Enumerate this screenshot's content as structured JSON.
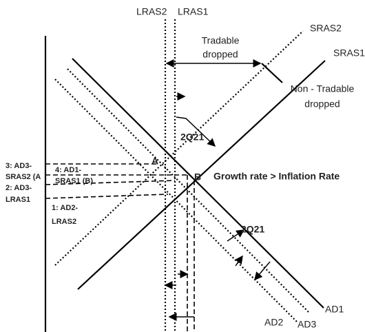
{
  "labels": {
    "lras2": "LRAS2",
    "lras1": "LRAS1",
    "sras2": "SRAS2",
    "sras1": "SRAS1",
    "tradable": [
      "Tradable",
      "dropped"
    ],
    "nontradable": [
      "Non - Tradable",
      "dropped"
    ],
    "q_top": "2Q21",
    "q_bottom": "2Q21",
    "a": "A",
    "b": "B",
    "growth": "Growth rate > Inflation Rate",
    "p3": [
      "3: AD3-",
      "SRAS2 (A"
    ],
    "p4": [
      "4: AD1-",
      "SRAS1 (B)"
    ],
    "p2": [
      "2: AD3-",
      "LRAS1"
    ],
    "p1": [
      "1: AD2-",
      "LRAS2"
    ],
    "ad1": "AD1",
    "ad2": "AD2",
    "ad3": "AD3"
  }
}
